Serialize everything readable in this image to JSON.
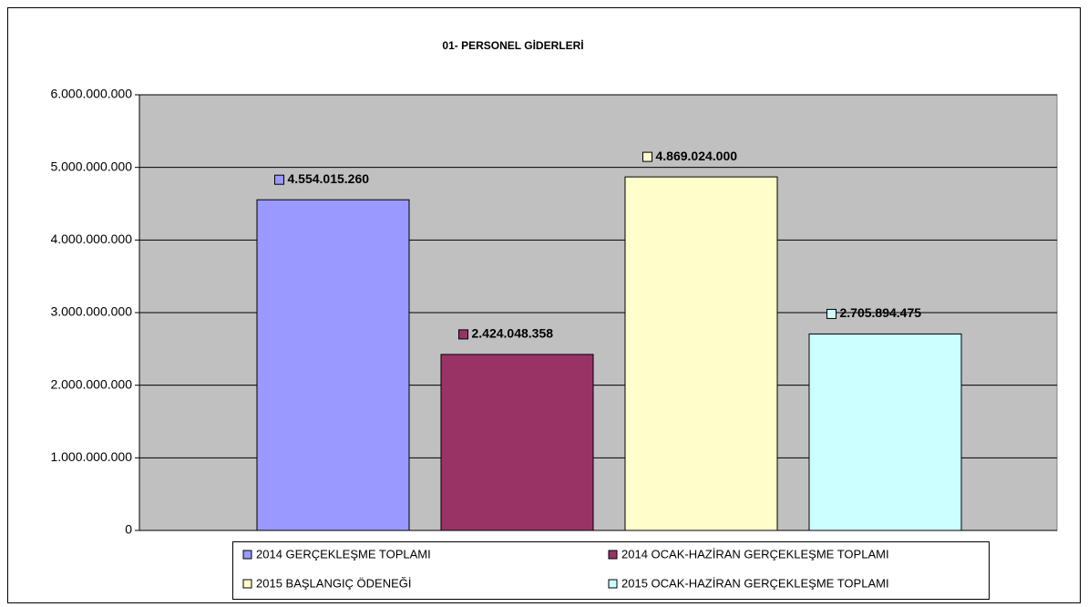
{
  "chart_data": {
    "type": "bar",
    "title": "01- PERSONEL GİDERLERİ",
    "series": [
      {
        "name": "2014 GERÇEKLEŞME TOPLAMI",
        "color": "#9999ff",
        "values": [
          4554015260
        ],
        "value_labels": [
          "4.554.015.260"
        ]
      },
      {
        "name": "2014 OCAK-HAZİRAN GERÇEKLEŞME TOPLAMI",
        "color": "#993366",
        "values": [
          2424048358
        ],
        "value_labels": [
          "2.424.048.358"
        ]
      },
      {
        "name": "2015 BAŞLANGIÇ ÖDENEĞİ",
        "color": "#ffffcc",
        "values": [
          4869024000
        ],
        "value_labels": [
          "4.869.024.000"
        ]
      },
      {
        "name": "2015 OCAK-HAZİRAN GERÇEKLEŞME TOPLAMI",
        "color": "#ccffff",
        "values": [
          2705894475
        ],
        "value_labels": [
          "2.705.894.475"
        ]
      }
    ],
    "ylim": [
      0,
      6000000000
    ],
    "yticks": [
      0,
      {
        "value": 1000000000,
        "label": "1.000.000.000"
      },
      {
        "value": 2000000000,
        "label": "2.000.000.000"
      },
      {
        "value": 3000000000,
        "label": "3.000.000.000"
      },
      {
        "value": 4000000000,
        "label": "4.000.000.000"
      },
      {
        "value": 5000000000,
        "label": "5.000.000.000"
      },
      {
        "value": 6000000000,
        "label": "6.000.000.000"
      }
    ],
    "grid": true,
    "legend": "bottom"
  }
}
